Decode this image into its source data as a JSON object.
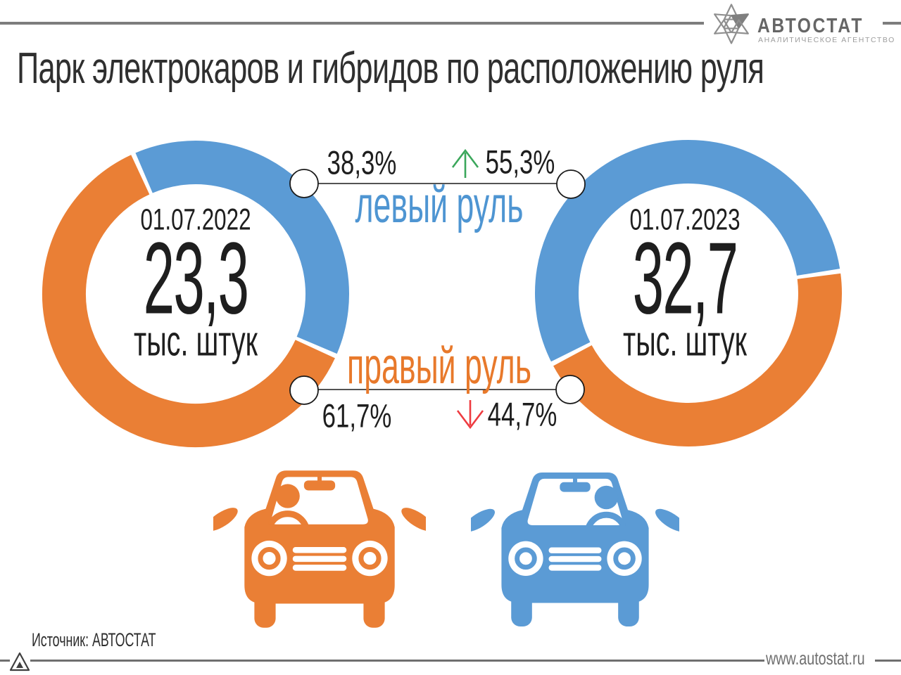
{
  "header": {
    "title": "Парк электрокаров и гибридов по расположению руля",
    "logo": {
      "name": "АВТОСТАТ",
      "subtitle": "АНАЛИТИЧЕСКОЕ АГЕНТСТВО"
    }
  },
  "chart_data": {
    "type": "pie",
    "variant": "two donut charts comparing steering-wheel position share",
    "unit_label": "тыс. штук",
    "legend": [
      {
        "label": "левый руль",
        "color": "#5B9BD5",
        "trend": "up"
      },
      {
        "label": "правый руль",
        "color": "#EA7F35",
        "trend": "down"
      }
    ],
    "donuts": [
      {
        "date": "01.07.2022",
        "total_value": 23.3,
        "total_display": "23,3",
        "left_wheel_pct": 38.3,
        "right_wheel_pct": 61.7,
        "left_pct_label": "38,3%",
        "right_pct_label": "61,7%"
      },
      {
        "date": "01.07.2023",
        "total_value": 32.7,
        "total_display": "32,7",
        "left_wheel_pct": 55.3,
        "right_wheel_pct": 44.7,
        "left_pct_label": "55,3%",
        "right_pct_label": "44,7%"
      }
    ]
  },
  "colors": {
    "left_wheel_blue": "#5B9BD5",
    "right_wheel_orange": "#EA7F35",
    "increase_green": "#3BA75B",
    "decrease_red": "#EE3B40",
    "rule_gray": "#7d7d7d"
  },
  "footer": {
    "source": "Источник: АВТОСТАТ",
    "website": "www.autostat.ru"
  }
}
